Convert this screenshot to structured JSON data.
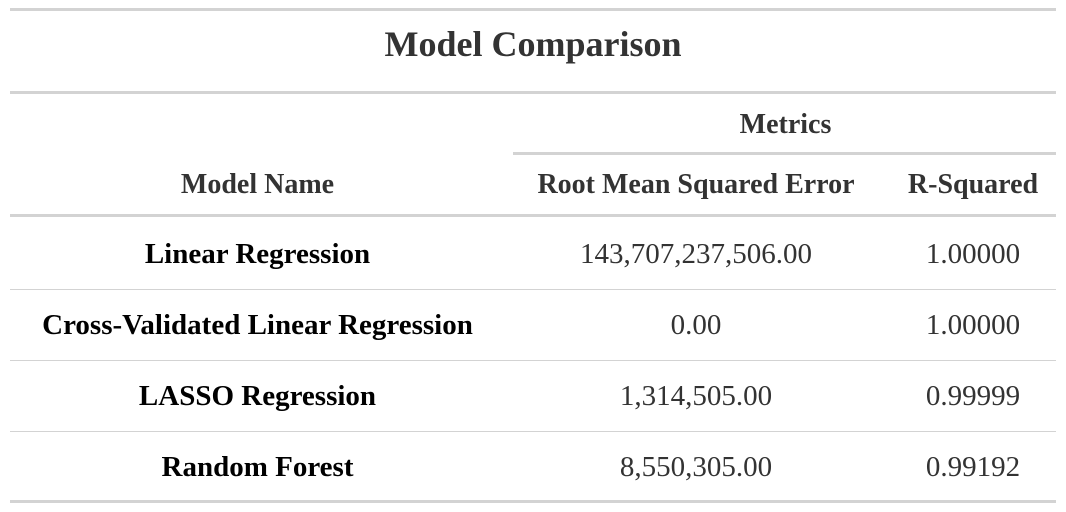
{
  "table": {
    "title": "Model Comparison",
    "spanner": "Metrics",
    "columns": {
      "model_name": "Model Name",
      "rmse": "Root Mean Squared Error",
      "r_squared": "R-Squared"
    },
    "rows": [
      {
        "model": "Linear Regression",
        "rmse": "143,707,237,506.00",
        "r_squared": "1.00000"
      },
      {
        "model": "Cross-Validated Linear Regression",
        "rmse": "0.00",
        "r_squared": "1.00000"
      },
      {
        "model": "LASSO Regression",
        "rmse": "1,314,505.00",
        "r_squared": "0.99999"
      },
      {
        "model": "Random Forest",
        "rmse": "8,550,305.00",
        "r_squared": "0.99192"
      }
    ]
  },
  "colors": {
    "rule": "#d3d3d3",
    "text": "#333333",
    "model_text": "#000000"
  }
}
